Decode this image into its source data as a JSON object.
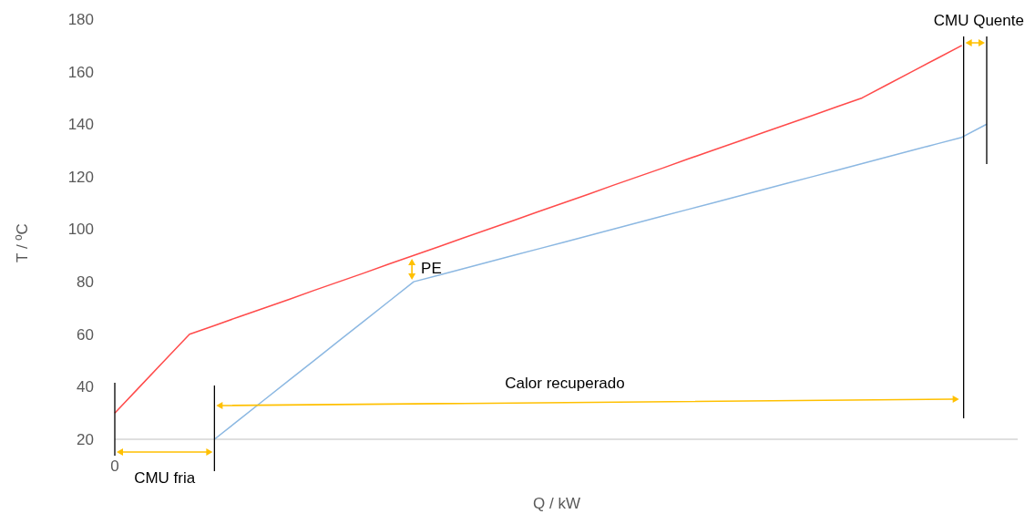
{
  "chart_data": {
    "type": "line",
    "xlabel": "Q / kW",
    "ylabel": "T / ºC",
    "categories": [
      null,
      null,
      null,
      null,
      null,
      null,
      null,
      null,
      null,
      null,
      null,
      null,
      null,
      null,
      null,
      null,
      null,
      null,
      null,
      null,
      null,
      null,
      null,
      null,
      null,
      null,
      null,
      null,
      null,
      null,
      null,
      null,
      null,
      null,
      null,
      null
    ],
    "ylim": [
      20,
      180
    ],
    "yticks": [
      20,
      40,
      60,
      80,
      100,
      120,
      140,
      160,
      180
    ],
    "grid": false,
    "marker": "none",
    "line_style": "solid",
    "series": [
      {
        "color": "#ff4b4b",
        "values": [
          30,
          40,
          50,
          60,
          63.3,
          66.7,
          70,
          73.3,
          76.7,
          80,
          83.3,
          86.7,
          90,
          93.3,
          96.7,
          100,
          103.3,
          106.7,
          110,
          113.3,
          116.7,
          120,
          123.3,
          126.7,
          130,
          133.3,
          136.7,
          140,
          143.3,
          146.7,
          150,
          155,
          160,
          165,
          170,
          null
        ]
      },
      {
        "color": "#8cb8e2",
        "values": [
          null,
          null,
          null,
          null,
          20,
          27.5,
          35,
          42.5,
          50,
          57.5,
          65,
          72.5,
          80,
          82.5,
          85,
          87.5,
          90,
          92.5,
          95,
          97.5,
          100,
          102.5,
          105,
          107.5,
          110,
          112.5,
          115,
          117.5,
          120,
          122.5,
          125,
          127.5,
          130,
          132.5,
          135,
          140
        ]
      }
    ],
    "annotations": [
      "CMU fria",
      "Calor recuperado",
      "PE",
      "CMU Quente",
      "0"
    ]
  }
}
